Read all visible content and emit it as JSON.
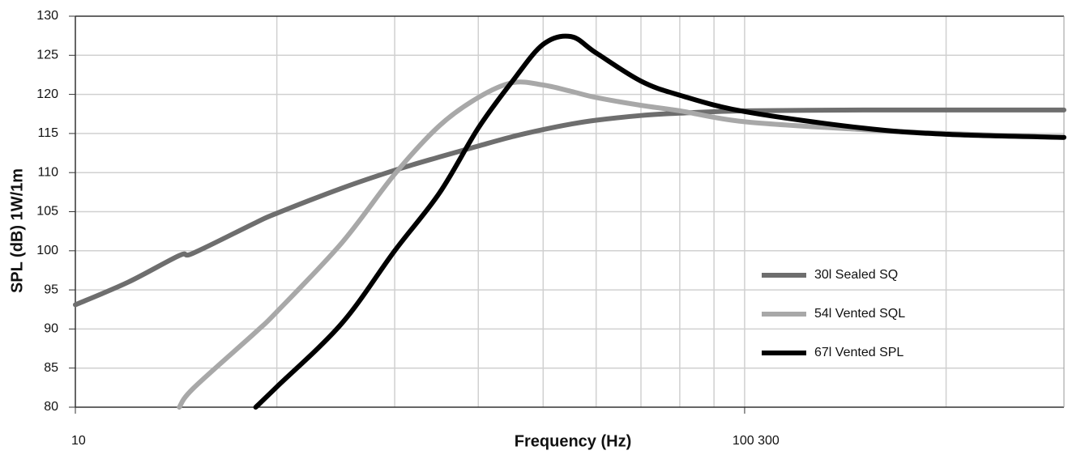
{
  "chart_data": {
    "type": "line",
    "x_label": "Frequency (Hz)",
    "y_label": "SPL (dB) 1W/1m",
    "log_x": true,
    "grid": true,
    "legend": "right",
    "x": [
      10,
      12,
      14.3,
      15,
      18.6,
      20,
      25,
      30,
      35,
      40,
      45,
      50,
      55,
      60,
      70,
      80,
      100,
      150,
      200,
      300
    ],
    "xlim": [
      10,
      300
    ],
    "xticks": [
      10,
      {
        "value": 100,
        "label": "100 300"
      }
    ],
    "xgrid": [
      20,
      30,
      40,
      50,
      60,
      70,
      80,
      90,
      100,
      200
    ],
    "ylim": [
      80,
      130
    ],
    "yticks": [
      80,
      85,
      90,
      95,
      100,
      105,
      110,
      115,
      120,
      125,
      130
    ],
    "series": [
      {
        "name": "30l Sealed SQ",
        "color": "#6e6e6e",
        "values": [
          93.1,
          96,
          99.4,
          99.7,
          103.6,
          104.8,
          108,
          110.3,
          112,
          113.4,
          114.6,
          115.5,
          116.2,
          116.7,
          117.3,
          117.6,
          117.9,
          118,
          118,
          118
        ]
      },
      {
        "name": "54l Vented SQL",
        "color": "#a8a8a8",
        "values": [
          null,
          null,
          80,
          82.4,
          89.6,
          92.2,
          101,
          109.8,
          116,
          119.6,
          121.5,
          121.2,
          120.4,
          119.6,
          118.6,
          117.9,
          116.5,
          115.5,
          115,
          114.5
        ]
      },
      {
        "name": "67l Vented SPL",
        "color": "#000000",
        "values": [
          null,
          null,
          null,
          null,
          80,
          82.6,
          90.7,
          100,
          107.4,
          115.7,
          121.7,
          126.4,
          127.4,
          125.3,
          121.7,
          119.9,
          117.8,
          115.7,
          114.9,
          114.5
        ]
      }
    ]
  }
}
